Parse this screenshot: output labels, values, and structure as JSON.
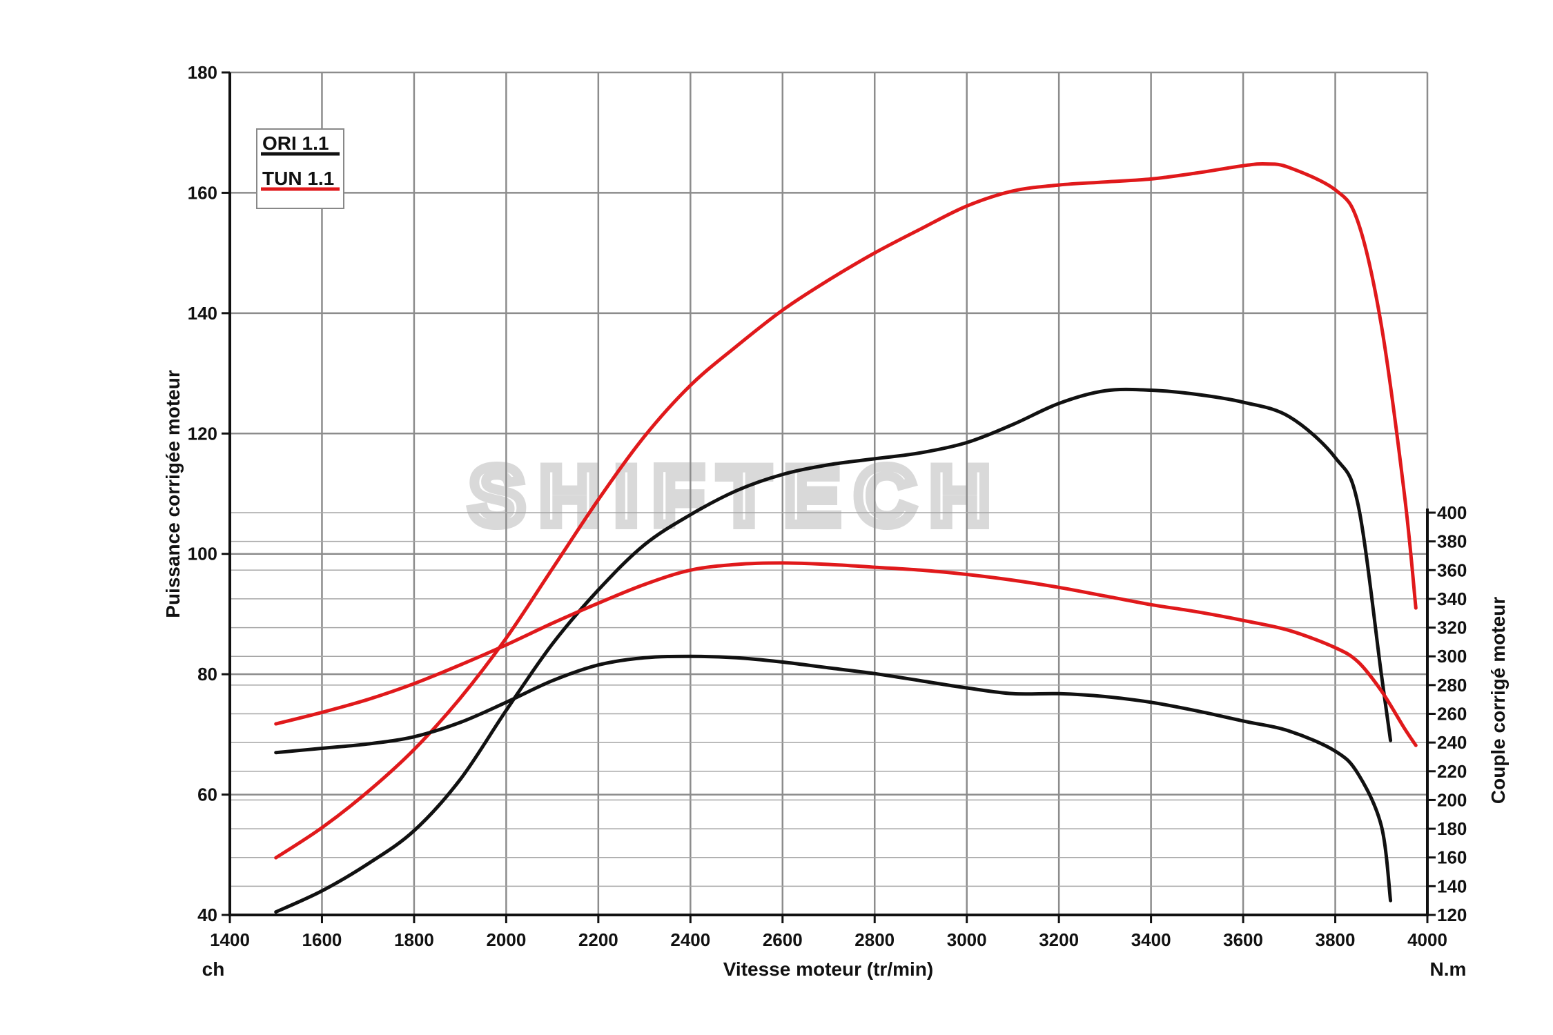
{
  "chart_data": {
    "type": "line",
    "watermark": "SHIFTECH",
    "x": {
      "label": "Vitesse moteur (tr/min)",
      "min": 1400,
      "max": 4000,
      "ticks": [
        1400,
        1600,
        1800,
        2000,
        2200,
        2400,
        2600,
        2800,
        3000,
        3200,
        3400,
        3600,
        3800,
        4000
      ]
    },
    "y_left": {
      "label": "Puissance corrigée moteur",
      "unit": "ch",
      "min": 40,
      "max": 180,
      "ticks": [
        40,
        60,
        80,
        100,
        120,
        140,
        160,
        180
      ]
    },
    "y_right": {
      "label": "Couple corrigé moteur",
      "unit": "N.m",
      "min": 120,
      "max": 400,
      "ticks": [
        120,
        140,
        160,
        180,
        200,
        220,
        240,
        260,
        280,
        300,
        320,
        340,
        360,
        380,
        400
      ]
    },
    "legend": [
      {
        "label": "ORI 1.1",
        "color": "#111111"
      },
      {
        "label": "TUN 1.1",
        "color": "#e0191b"
      }
    ],
    "series": [
      {
        "name": "ORI 1.1 puissance",
        "axis": "left",
        "color": "#111111",
        "points": [
          [
            1500,
            40.5
          ],
          [
            1600,
            44
          ],
          [
            1700,
            48.5
          ],
          [
            1800,
            54
          ],
          [
            1900,
            62.5
          ],
          [
            2000,
            74
          ],
          [
            2100,
            85
          ],
          [
            2200,
            94
          ],
          [
            2300,
            101.5
          ],
          [
            2400,
            106.5
          ],
          [
            2500,
            110.5
          ],
          [
            2600,
            113.2
          ],
          [
            2700,
            114.8
          ],
          [
            2800,
            115.8
          ],
          [
            2900,
            116.8
          ],
          [
            3000,
            118.5
          ],
          [
            3100,
            121.5
          ],
          [
            3200,
            125
          ],
          [
            3300,
            127.1
          ],
          [
            3400,
            127.2
          ],
          [
            3500,
            126.5
          ],
          [
            3600,
            125.2
          ],
          [
            3700,
            122.8
          ],
          [
            3800,
            116
          ],
          [
            3850,
            108
          ],
          [
            3900,
            80
          ],
          [
            3920,
            69
          ]
        ]
      },
      {
        "name": "TUN 1.1 puissance",
        "axis": "left",
        "color": "#e0191b",
        "points": [
          [
            1500,
            49.5
          ],
          [
            1600,
            54.5
          ],
          [
            1700,
            60.5
          ],
          [
            1800,
            67.5
          ],
          [
            1900,
            76
          ],
          [
            2000,
            86
          ],
          [
            2100,
            97.5
          ],
          [
            2200,
            109
          ],
          [
            2300,
            119.5
          ],
          [
            2400,
            128
          ],
          [
            2500,
            134.5
          ],
          [
            2600,
            140.5
          ],
          [
            2700,
            145.5
          ],
          [
            2800,
            150
          ],
          [
            2900,
            154
          ],
          [
            3000,
            157.8
          ],
          [
            3100,
            160.3
          ],
          [
            3200,
            161.3
          ],
          [
            3300,
            161.8
          ],
          [
            3400,
            162.3
          ],
          [
            3500,
            163.3
          ],
          [
            3600,
            164.5
          ],
          [
            3650,
            164.8
          ],
          [
            3700,
            164.2
          ],
          [
            3800,
            160.5
          ],
          [
            3850,
            155
          ],
          [
            3900,
            138
          ],
          [
            3950,
            110
          ],
          [
            3975,
            91
          ]
        ]
      },
      {
        "name": "ORI 1.1 couple",
        "axis": "right",
        "color": "#111111",
        "points": [
          [
            1500,
            233
          ],
          [
            1600,
            236
          ],
          [
            1700,
            239
          ],
          [
            1800,
            244
          ],
          [
            1900,
            254
          ],
          [
            2000,
            268
          ],
          [
            2100,
            283
          ],
          [
            2200,
            294
          ],
          [
            2300,
            299
          ],
          [
            2400,
            300
          ],
          [
            2500,
            299
          ],
          [
            2600,
            296
          ],
          [
            2700,
            292
          ],
          [
            2800,
            288
          ],
          [
            2900,
            283
          ],
          [
            3000,
            278
          ],
          [
            3100,
            274
          ],
          [
            3200,
            274
          ],
          [
            3300,
            272
          ],
          [
            3400,
            268
          ],
          [
            3500,
            262
          ],
          [
            3600,
            255
          ],
          [
            3700,
            248
          ],
          [
            3800,
            234
          ],
          [
            3850,
            218
          ],
          [
            3900,
            182
          ],
          [
            3920,
            130
          ]
        ]
      },
      {
        "name": "TUN 1.1 couple",
        "axis": "right",
        "color": "#e0191b",
        "points": [
          [
            1500,
            253
          ],
          [
            1600,
            261
          ],
          [
            1700,
            270
          ],
          [
            1800,
            281
          ],
          [
            1900,
            294
          ],
          [
            2000,
            308
          ],
          [
            2100,
            323
          ],
          [
            2200,
            337
          ],
          [
            2300,
            350
          ],
          [
            2400,
            360
          ],
          [
            2500,
            364
          ],
          [
            2600,
            365
          ],
          [
            2700,
            364
          ],
          [
            2800,
            362
          ],
          [
            2900,
            360
          ],
          [
            3000,
            357
          ],
          [
            3100,
            353
          ],
          [
            3200,
            348
          ],
          [
            3300,
            342
          ],
          [
            3400,
            336
          ],
          [
            3500,
            331
          ],
          [
            3600,
            325
          ],
          [
            3700,
            318
          ],
          [
            3800,
            306
          ],
          [
            3850,
            296
          ],
          [
            3900,
            276
          ],
          [
            3950,
            250
          ],
          [
            3975,
            238
          ]
        ]
      }
    ]
  }
}
